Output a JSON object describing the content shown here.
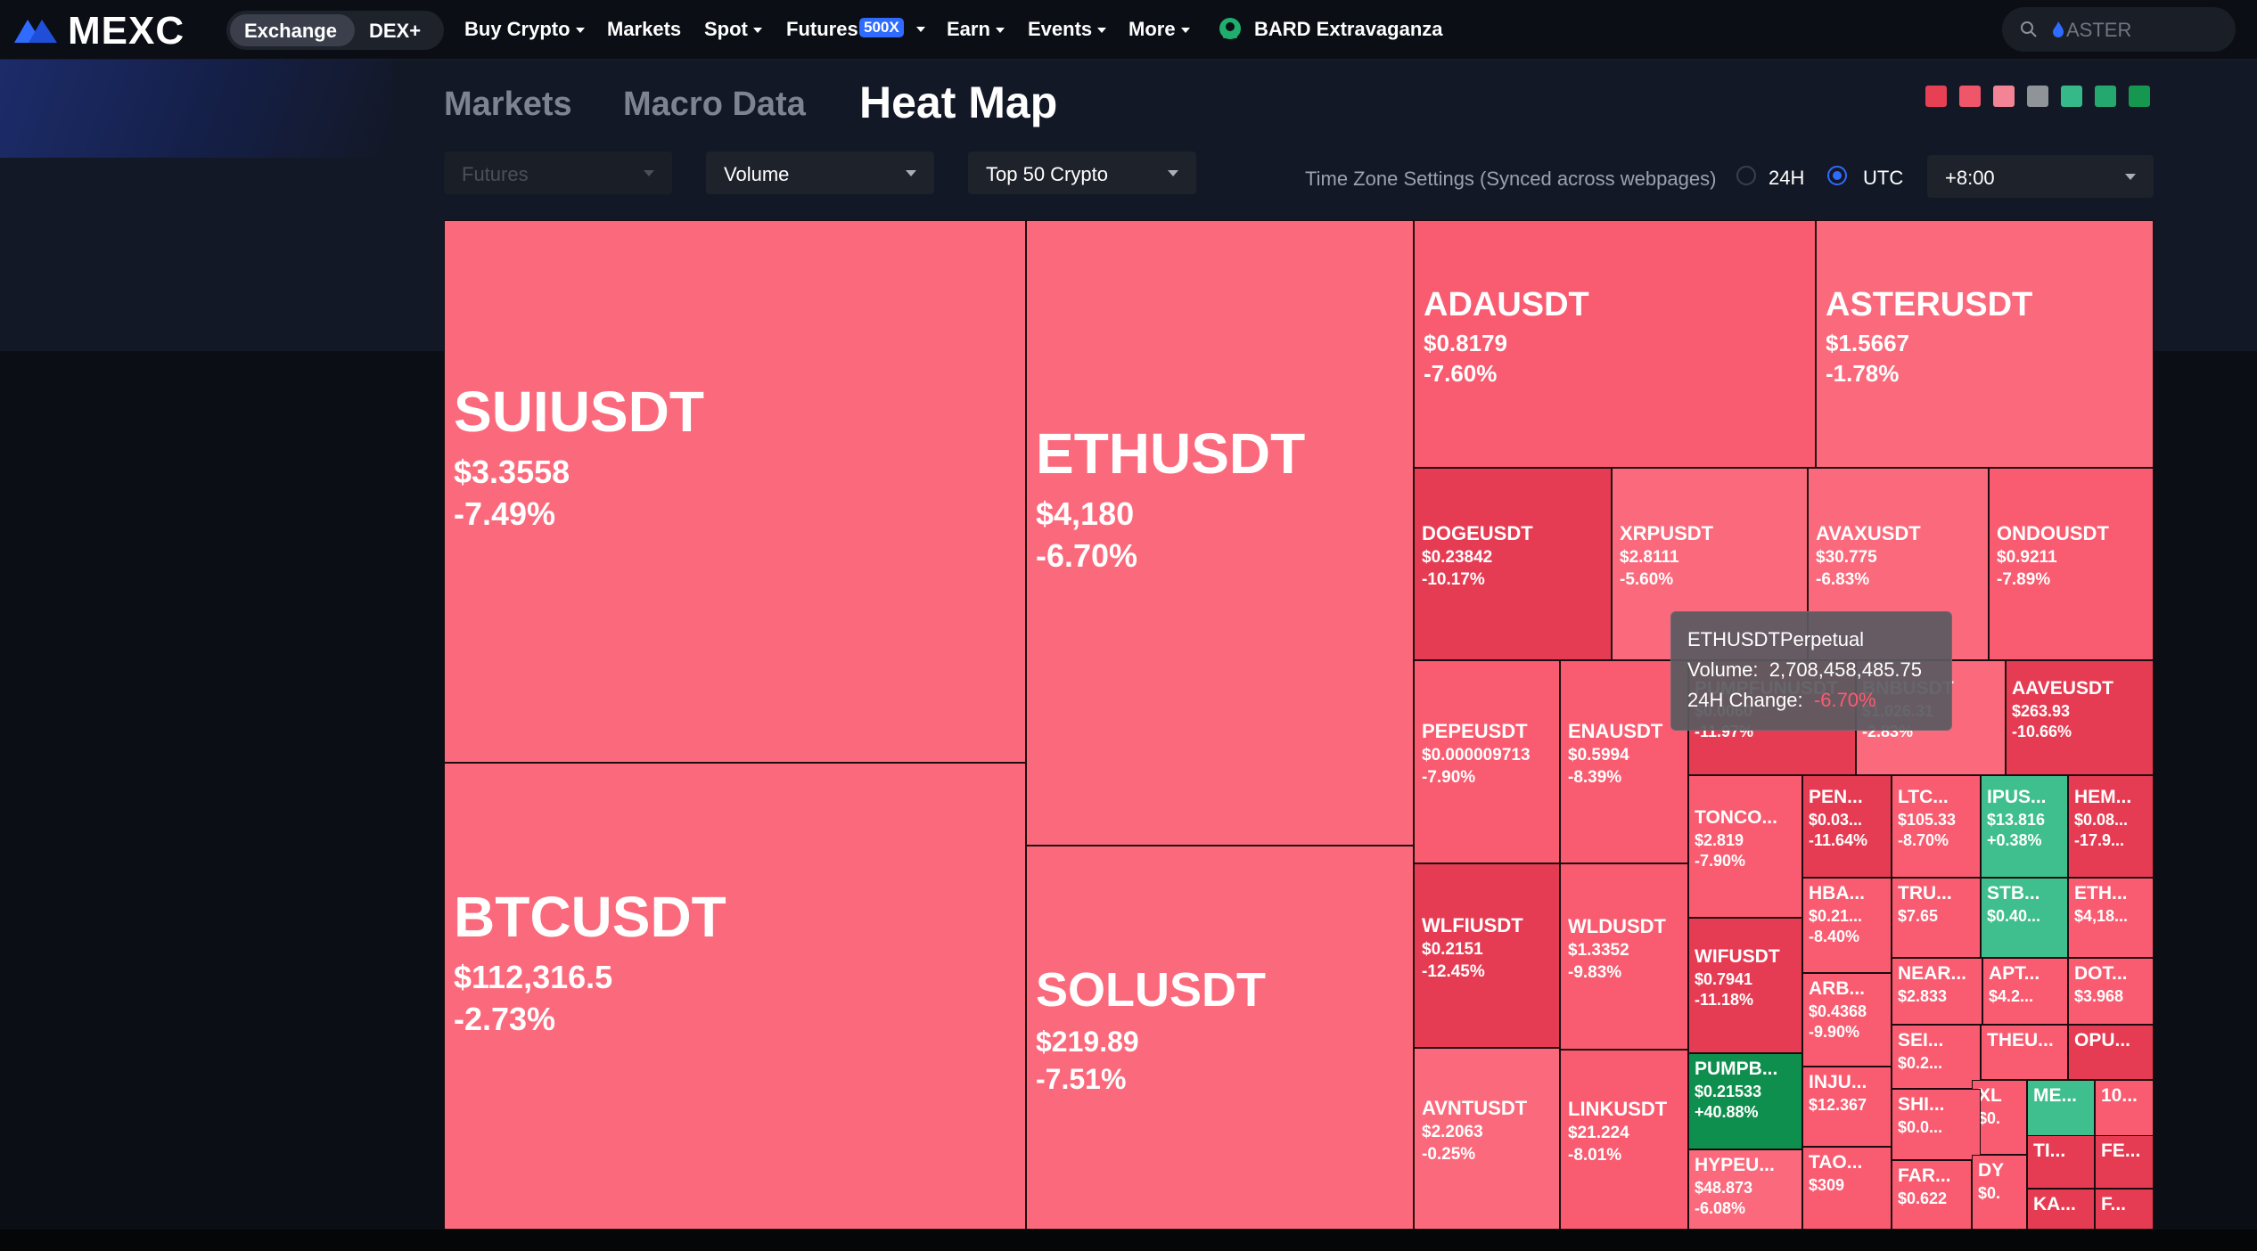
{
  "nav": {
    "logo_text": "MEXC",
    "seg_exchange": "Exchange",
    "seg_dex": "DEX+",
    "items": [
      "Buy Crypto",
      "Markets",
      "Spot",
      "Futures",
      "Earn",
      "Events",
      "More"
    ],
    "futures_badge": "500X",
    "promo": "BARD Extravaganza",
    "search_placeholder": "ASTER"
  },
  "tabs": {
    "markets": "Markets",
    "macro": "Macro Data",
    "heatmap": "Heat Map"
  },
  "legend_colors": [
    "#e64054",
    "#f0566a",
    "#f38495",
    "#8f9499",
    "#36b988",
    "#25a870",
    "#15974f"
  ],
  "controls": {
    "market": "Futures",
    "metric": "Volume",
    "scope": "Top 50 Crypto",
    "tz_text": "Time Zone Settings (Synced across webpages)",
    "tz_24h": "24H",
    "tz_utc": "UTC",
    "tz_offset": "+8:00"
  },
  "tiles": [
    {
      "symbol": "SUIUSDT",
      "price": "$3.3558",
      "change": "-7.49%",
      "color": "#fb6a7c"
    },
    {
      "symbol": "BTCUSDT",
      "price": "$112,316.5",
      "change": "-2.73%",
      "color": "#fb6a7c"
    },
    {
      "symbol": "ETHUSDT",
      "price": "$4,180",
      "change": "-6.70%",
      "color": "#fb6a7c"
    },
    {
      "symbol": "SOLUSDT",
      "price": "$219.89",
      "change": "-7.51%",
      "color": "#fb6a7c"
    },
    {
      "symbol": "ADAUSDT",
      "price": "$0.8179",
      "change": "-7.60%",
      "color": "#f95c70"
    },
    {
      "symbol": "ASTERUSDT",
      "price": "$1.5667",
      "change": "-1.78%",
      "color": "#fb6a7c"
    },
    {
      "symbol": "DOGEUSDT",
      "price": "$0.23842",
      "change": "-10.17%",
      "color": "#e63c53"
    },
    {
      "symbol": "XRPUSDT",
      "price": "$2.8111",
      "change": "-5.60%",
      "color": "#fb6a7c"
    },
    {
      "symbol": "AVAXUSDT",
      "price": "$30.775",
      "change": "-6.83%",
      "color": "#fb6a7c"
    },
    {
      "symbol": "ONDOUSDT",
      "price": "$0.9211",
      "change": "-7.89%",
      "color": "#f95c70"
    },
    {
      "symbol": "PEPEUSDT",
      "price": "$0.000009713",
      "change": "-7.90%",
      "color": "#f95c70"
    },
    {
      "symbol": "ENAUSDT",
      "price": "$0.5994",
      "change": "-8.39%",
      "color": "#f95c70"
    },
    {
      "symbol": "PUMPFUNUSDT",
      "price": "$0.0060",
      "change": "-11.97%",
      "color": "#e63c53"
    },
    {
      "symbol": "BNBUSDT",
      "price": "$1,026.31",
      "change": "-2.83%",
      "color": "#fb6a7c"
    },
    {
      "symbol": "AAVEUSDT",
      "price": "$263.93",
      "change": "-10.66%",
      "color": "#e63c53"
    },
    {
      "symbol": "WLFIUSDT",
      "price": "$0.2151",
      "change": "-12.45%",
      "color": "#e63c53"
    },
    {
      "symbol": "WLDUSDT",
      "price": "$1.3352",
      "change": "-9.83%",
      "color": "#f95c70"
    },
    {
      "symbol": "TONCO...",
      "price": "$2.819",
      "change": "-7.90%",
      "color": "#f95c70"
    },
    {
      "symbol": "PEN...",
      "price": "$0.03...",
      "change": "-11.64%",
      "color": "#e63c53"
    },
    {
      "symbol": "LTC...",
      "price": "$105.33",
      "change": "-8.70%",
      "color": "#f95c70"
    },
    {
      "symbol": "IPUS...",
      "price": "$13.816",
      "change": "+0.38%",
      "color": "#3fbf8d"
    },
    {
      "symbol": "HEM...",
      "price": "$0.08...",
      "change": "-17.9...",
      "color": "#e63c53"
    },
    {
      "symbol": "AVNTUSDT",
      "price": "$2.2063",
      "change": "-0.25%",
      "color": "#fb6a7c"
    },
    {
      "symbol": "LINKUSDT",
      "price": "$21.224",
      "change": "-8.01%",
      "color": "#f95c70"
    },
    {
      "symbol": "WIFUSDT",
      "price": "$0.7941",
      "change": "-11.18%",
      "color": "#e63c53"
    },
    {
      "symbol": "HBA...",
      "price": "$0.21...",
      "change": "-8.40%",
      "color": "#f95c70"
    },
    {
      "symbol": "TRU...",
      "price": "$7.65",
      "change": "",
      "color": "#f95c70"
    },
    {
      "symbol": "STB...",
      "price": "$0.40...",
      "change": "",
      "color": "#3fbf8d"
    },
    {
      "symbol": "ETH...",
      "price": "$4,18...",
      "change": "",
      "color": "#f95c70"
    },
    {
      "symbol": "ARB...",
      "price": "$0.4368",
      "change": "-9.90%",
      "color": "#f95c70"
    },
    {
      "symbol": "NEAR...",
      "price": "$2.833",
      "change": "",
      "color": "#f95c70"
    },
    {
      "symbol": "APT...",
      "price": "$4.2...",
      "change": "",
      "color": "#f95c70"
    },
    {
      "symbol": "DOT...",
      "price": "$3.968",
      "change": "",
      "color": "#f95c70"
    },
    {
      "symbol": "PUMPB...",
      "price": "$0.21533",
      "change": "+40.88%",
      "color": "#0f8f4e"
    },
    {
      "symbol": "INJU...",
      "price": "$12.367",
      "change": "",
      "color": "#f95c70"
    },
    {
      "symbol": "SEI...",
      "price": "$0.2...",
      "change": "",
      "color": "#f95c70"
    },
    {
      "symbol": "THEU...",
      "price": "",
      "change": "",
      "color": "#f95c70"
    },
    {
      "symbol": "OPU...",
      "price": "",
      "change": "",
      "color": "#e63c53"
    },
    {
      "symbol": "XL",
      "price": "$0.",
      "change": "",
      "color": "#f95c70"
    },
    {
      "symbol": "ME...",
      "price": "",
      "change": "",
      "color": "#3fbf8d"
    },
    {
      "symbol": "10...",
      "price": "",
      "change": "",
      "color": "#f95c70"
    },
    {
      "symbol": "SHI...",
      "price": "$0.0...",
      "change": "",
      "color": "#f95c70"
    },
    {
      "symbol": "HYPEU...",
      "price": "$48.873",
      "change": "-6.08%",
      "color": "#fb6a7c"
    },
    {
      "symbol": "TAO...",
      "price": "$309",
      "change": "",
      "color": "#f95c70"
    },
    {
      "symbol": "FAR...",
      "price": "$0.622",
      "change": "",
      "color": "#f95c70"
    },
    {
      "symbol": "DY",
      "price": "$0.",
      "change": "",
      "color": "#f95c70"
    },
    {
      "symbol": "TI...",
      "price": "",
      "change": "",
      "color": "#e63c53"
    },
    {
      "symbol": "FE...",
      "price": "",
      "change": "",
      "color": "#e63c53"
    },
    {
      "symbol": "KA...",
      "price": "",
      "change": "",
      "color": "#e63c53"
    },
    {
      "symbol": "F...",
      "price": "",
      "change": "",
      "color": "#e63c53"
    }
  ],
  "tooltip": {
    "title": "ETHUSDTPerpetual",
    "volume_label": "Volume:",
    "volume_value": "2,708,458,485.75",
    "change_label": "24H Change:",
    "change_value": "-6.70%"
  }
}
